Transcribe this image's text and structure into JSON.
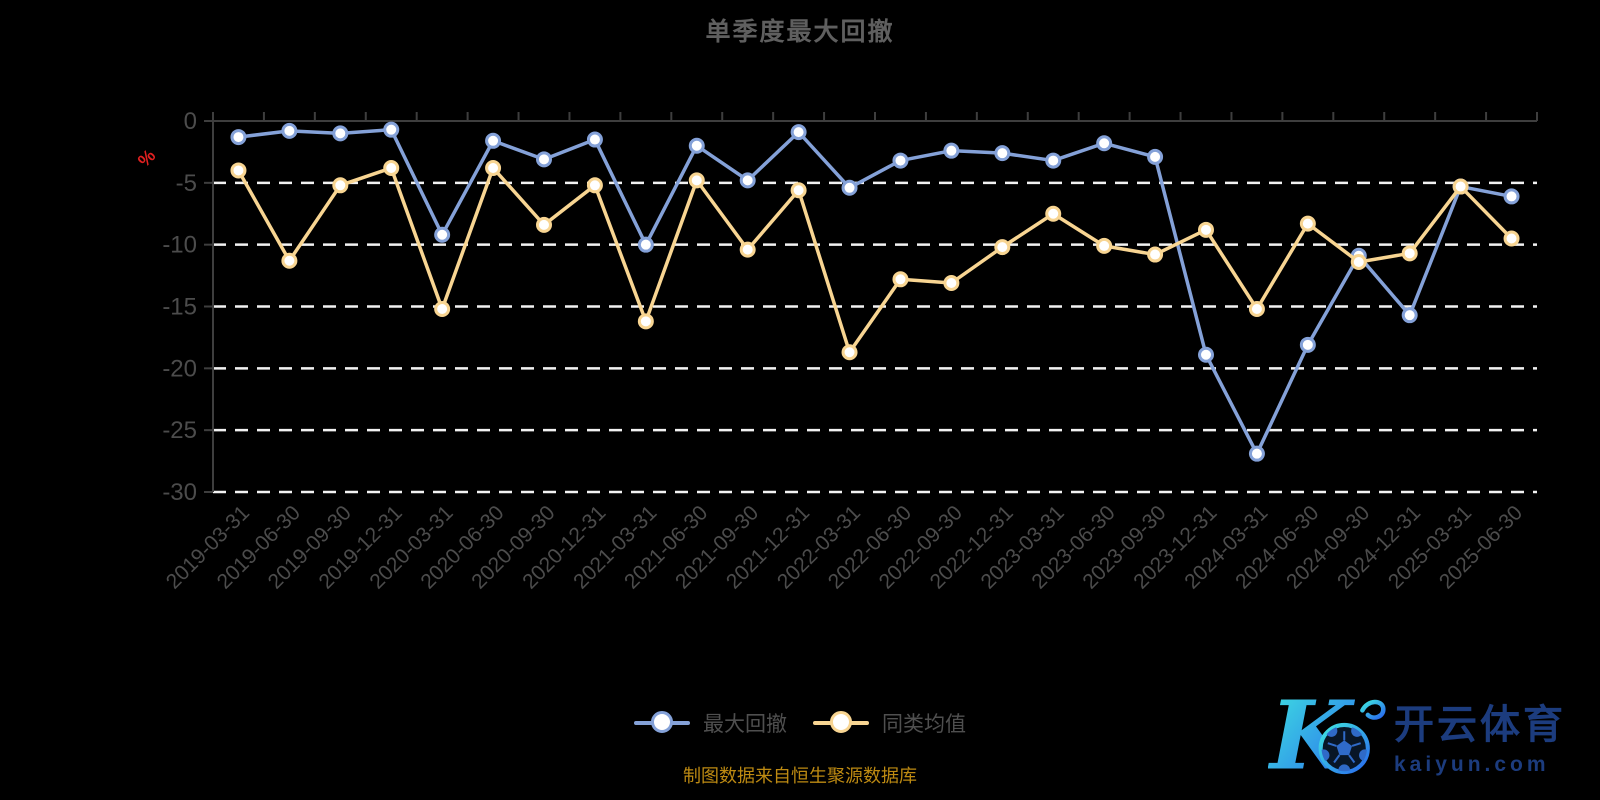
{
  "title": "单季度最大回撤",
  "y_axis": {
    "unit_label": "%",
    "ticks": [
      "0",
      "-5",
      "-10",
      "-15",
      "-20",
      "-25",
      "-30"
    ]
  },
  "chart_data": {
    "type": "line",
    "title": "单季度最大回撤",
    "xlabel": "",
    "ylabel": "%",
    "ylim": [
      -30,
      0
    ],
    "grid": "horizontal-dashed-white",
    "legend_position": "bottom",
    "categories": [
      "2019-03-31",
      "2019-06-30",
      "2019-09-30",
      "2019-12-31",
      "2020-03-31",
      "2020-06-30",
      "2020-09-30",
      "2020-12-31",
      "2021-03-31",
      "2021-06-30",
      "2021-09-30",
      "2021-12-31",
      "2022-03-31",
      "2022-06-30",
      "2022-09-30",
      "2022-12-31",
      "2023-03-31",
      "2023-06-30",
      "2023-09-30",
      "2023-12-31",
      "2024-03-31",
      "2024-06-30",
      "2024-09-30",
      "2024-12-31",
      "2025-03-31",
      "2025-06-30"
    ],
    "series": [
      {
        "name": "最大回撤",
        "key": "max-drawdown",
        "color": "#84a1d8",
        "values": [
          -1.3,
          -0.8,
          -1.0,
          -0.7,
          -9.2,
          -1.6,
          -3.1,
          -1.5,
          -10.0,
          -2.0,
          -4.8,
          -0.9,
          -5.4,
          -3.2,
          -2.4,
          -2.6,
          -3.2,
          -1.8,
          -2.9,
          -18.9,
          -26.9,
          -18.1,
          -10.9,
          -15.7,
          -5.3,
          -6.1
        ]
      },
      {
        "name": "同类均值",
        "key": "peer-average",
        "color": "#f8d592",
        "values": [
          -4.0,
          -11.3,
          -5.2,
          -3.8,
          -15.2,
          -3.8,
          -8.4,
          -5.2,
          -16.2,
          -4.8,
          -10.4,
          -5.6,
          -18.7,
          -12.8,
          -13.1,
          -10.2,
          -7.5,
          -10.1,
          -10.8,
          -8.8,
          -15.2,
          -8.3,
          -11.4,
          -10.7,
          -5.3,
          -9.5
        ]
      }
    ]
  },
  "footer": {
    "source_note": "制图数据来自恒生聚源数据库"
  },
  "watermark": {
    "brand_cn": "开云体育",
    "brand_domain": "kaiyun.com"
  },
  "theme": {
    "background": "#000000",
    "title_color": "#5f5f5f",
    "axis_label_color": "#4c4c4c",
    "axis_line_color": "#3e3e3e",
    "gridline_color": "#f2f2f2",
    "percent_label_color": "#e02020",
    "legend_text_color": "#4f4f4f",
    "footer_color": "#bd8a12",
    "marker_fill": "#ffffff",
    "watermark_color": "#1c3c7e",
    "watermark_gradient_start": "#3fe6e0",
    "watermark_gradient_end": "#2968ee"
  }
}
